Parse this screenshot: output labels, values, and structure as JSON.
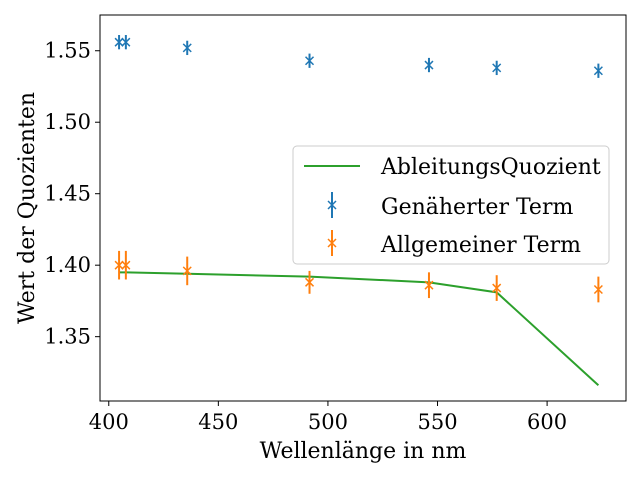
{
  "chart_data": {
    "type": "scatter",
    "xlabel": "Wellenlänge in nm",
    "ylabel": "Wert der Quozienten",
    "xlim": [
      396,
      636
    ],
    "ylim": [
      1.305,
      1.575
    ],
    "xticks": [
      400,
      450,
      500,
      550,
      600
    ],
    "yticks": [
      1.35,
      1.4,
      1.45,
      1.5,
      1.55
    ],
    "xtick_labels": [
      "400",
      "450",
      "500",
      "550",
      "600"
    ],
    "ytick_labels": [
      "1.35",
      "1.40",
      "1.45",
      "1.50",
      "1.55"
    ],
    "grid": false,
    "legend_position": "center-right",
    "series": [
      {
        "name": "AbleitungsQuozient",
        "kind": "line",
        "color": "#2ca02c",
        "x": [
          404.7,
          407.8,
          435.8,
          491.6,
          546.1,
          577.0,
          623.4
        ],
        "y": [
          1.395,
          1.395,
          1.394,
          1.392,
          1.388,
          1.381,
          1.316
        ]
      },
      {
        "name": "Genäherter Term",
        "kind": "errorbar",
        "marker": "x",
        "color": "#1f77b4",
        "x": [
          404.7,
          407.8,
          435.8,
          491.6,
          546.1,
          577.0,
          623.4
        ],
        "y": [
          1.556,
          1.556,
          1.552,
          1.543,
          1.54,
          1.538,
          1.536
        ],
        "yerr": [
          0.005,
          0.005,
          0.005,
          0.005,
          0.005,
          0.005,
          0.005
        ]
      },
      {
        "name": "Allgemeiner Term",
        "kind": "errorbar",
        "marker": "x",
        "color": "#ff7f0e",
        "x": [
          404.7,
          407.8,
          435.8,
          491.6,
          546.1,
          577.0,
          623.4
        ],
        "y": [
          1.4,
          1.4,
          1.396,
          1.388,
          1.386,
          1.384,
          1.383
        ],
        "yerr": [
          0.01,
          0.01,
          0.01,
          0.008,
          0.009,
          0.009,
          0.009
        ]
      }
    ]
  }
}
